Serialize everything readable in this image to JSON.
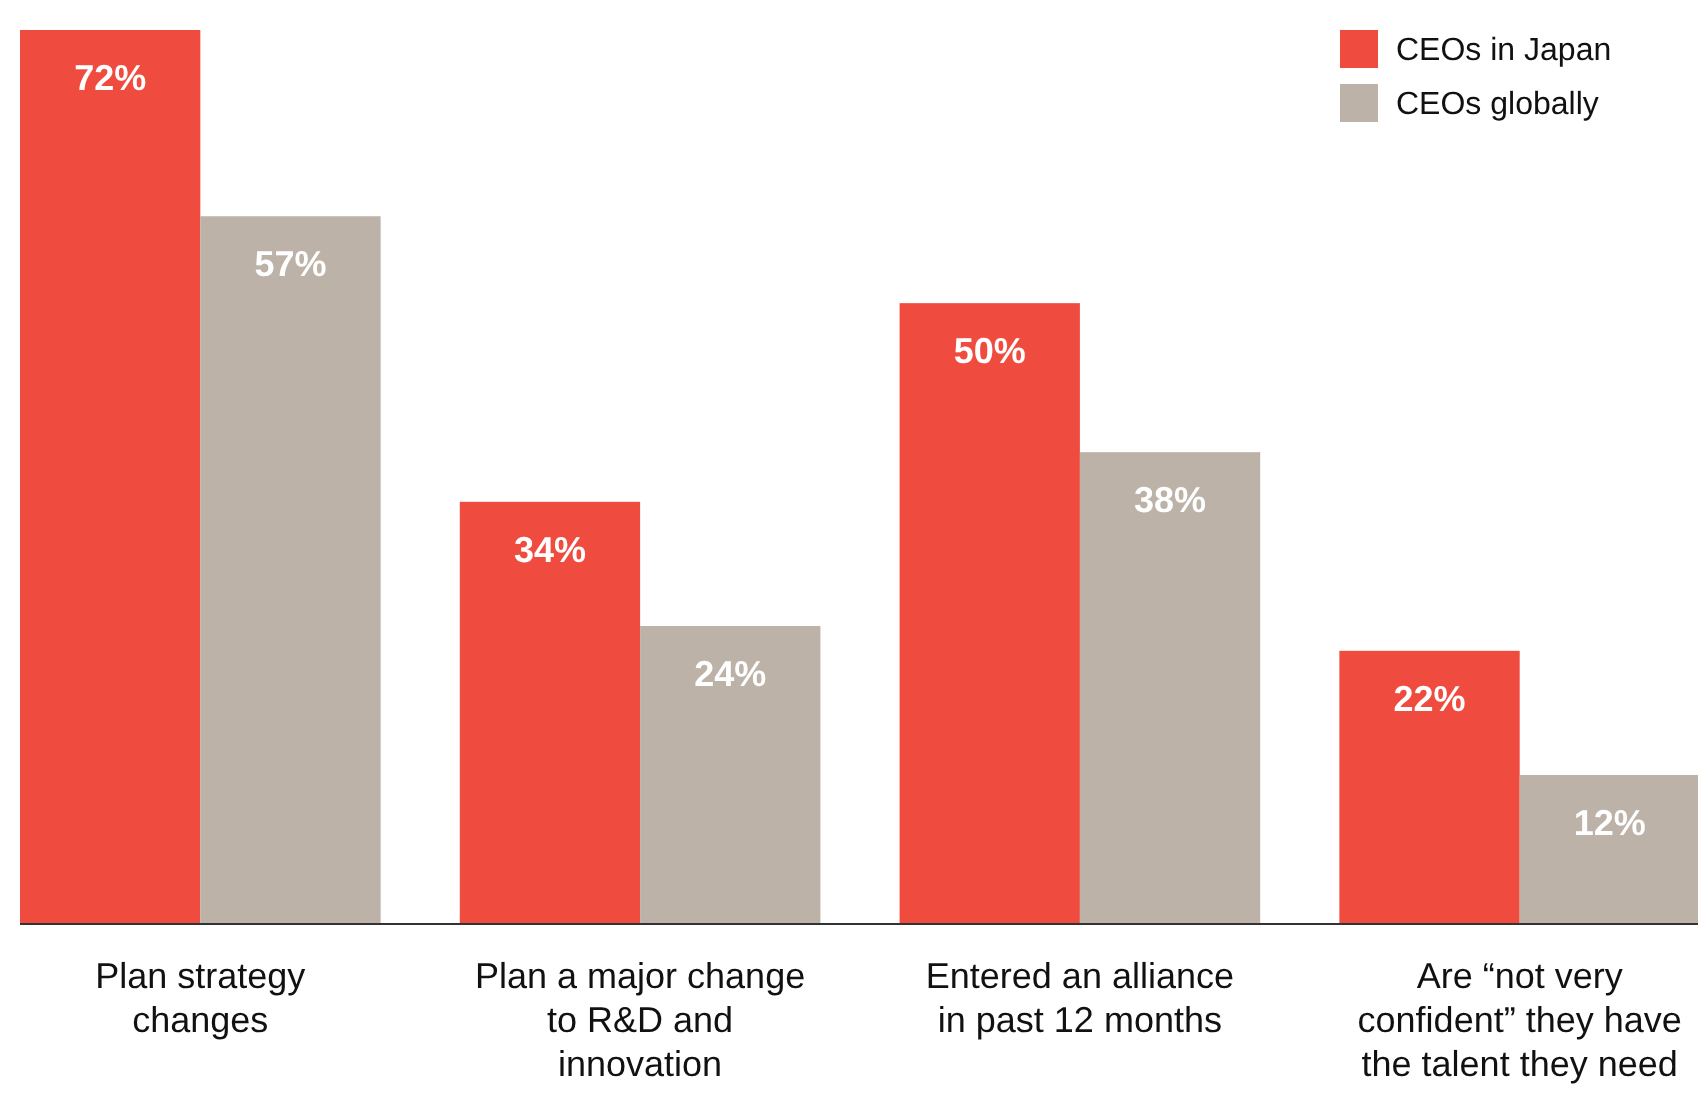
{
  "chart_data": {
    "type": "bar",
    "categories": [
      "Plan strategy changes",
      "Plan a major change to R&D and innovation",
      "Entered an alliance in past 12 months",
      "Are “not very confident” they have the talent they need"
    ],
    "series": [
      {
        "name": "CEOs in Japan",
        "color": "#f04b3f",
        "values": [
          72,
          34,
          50,
          22
        ],
        "value_labels": [
          "72%",
          "34%",
          "50%",
          "22%"
        ]
      },
      {
        "name": "CEOs globally",
        "color": "#bcb2a8",
        "values": [
          57,
          24,
          38,
          12
        ],
        "value_labels": [
          "57%",
          "24%",
          "38%",
          "12%"
        ]
      }
    ],
    "legend": "top right"
  }
}
